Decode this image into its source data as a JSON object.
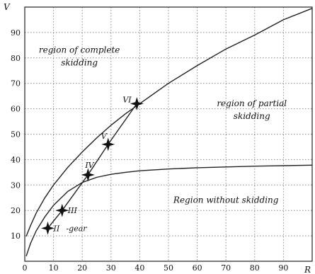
{
  "chart_data": {
    "type": "line",
    "xlabel": "R",
    "ylabel": "V",
    "xlim": [
      0,
      100
    ],
    "ylim": [
      0,
      100
    ],
    "x_ticks": [
      "0",
      "10",
      "20",
      "30",
      "40",
      "50",
      "60",
      "70",
      "80",
      "90"
    ],
    "y_ticks": [
      "10",
      "20",
      "30",
      "40",
      "50",
      "60",
      "70",
      "80",
      "90"
    ],
    "grid": true,
    "series": [
      {
        "x": [
          0.5,
          2,
          4,
          7,
          10,
          15,
          20,
          25,
          30,
          35,
          40,
          50,
          60,
          70,
          80,
          90,
          100
        ],
        "y": [
          9.8,
          14.0,
          19.0,
          25.0,
          30.0,
          37.0,
          43.0,
          48.5,
          53.5,
          58.0,
          62.0,
          70.0,
          77.0,
          83.5,
          89.0,
          95.0,
          99.5
        ]
      },
      {
        "x": [
          0.5,
          2,
          4,
          7,
          10,
          15,
          20,
          25,
          30,
          35,
          40,
          50,
          60,
          70,
          80,
          90,
          100
        ],
        "y": [
          2.0,
          7.0,
          12.0,
          17.5,
          22.0,
          27.5,
          31.0,
          33.0,
          34.2,
          35.0,
          35.6,
          36.3,
          36.8,
          37.1,
          37.4,
          37.6,
          37.8
        ]
      },
      {
        "x": [
          8,
          13,
          22,
          29,
          39
        ],
        "y": [
          13,
          20,
          34,
          46,
          62
        ]
      }
    ],
    "gear_points": [
      {
        "label": "II",
        "x": 8,
        "y": 13
      },
      {
        "label": "III",
        "x": 13,
        "y": 20
      },
      {
        "label": "IV",
        "x": 22,
        "y": 34
      },
      {
        "label": "V",
        "x": 29,
        "y": 46
      },
      {
        "label": "VI",
        "x": 39,
        "y": 62
      }
    ],
    "gear_label": "-gear",
    "annotations": [
      {
        "text": "region of complete",
        "x": 19,
        "y": 82
      },
      {
        "text": "skidding",
        "x": 19,
        "y": 77
      },
      {
        "text": "region of partial",
        "x": 79,
        "y": 61
      },
      {
        "text": "skidding",
        "x": 79,
        "y": 56
      },
      {
        "text": "Region without skidding",
        "x": 70,
        "y": 23
      }
    ]
  }
}
